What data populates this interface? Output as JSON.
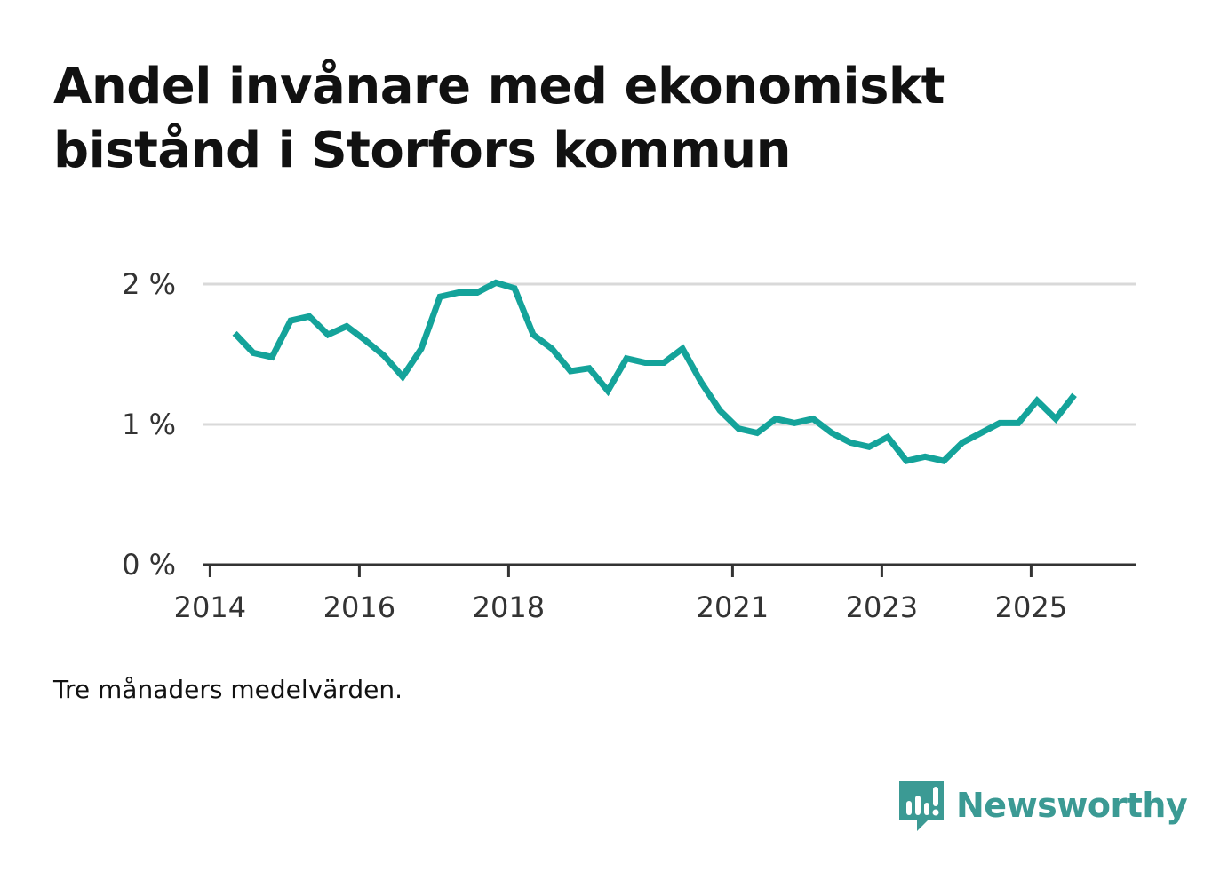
{
  "title": "Andel invånare med ekonomiskt bistånd i Storfors kommun",
  "footnote": "Tre månaders medelvärden.",
  "brand": {
    "name": "Newsworthy",
    "icon": "newsworthy-logo-icon",
    "color": "#3b9a94"
  },
  "colors": {
    "line": "#14a39a",
    "grid": "#d9d9d9",
    "axis": "#333333",
    "text": "#333333"
  },
  "chart_data": {
    "type": "line",
    "title": "Andel invånare med ekonomiskt bistånd i Storfors kommun",
    "xlabel": "",
    "ylabel": "",
    "xlim": [
      2013.9,
      2026.4
    ],
    "ylim": [
      0,
      2
    ],
    "x_ticks": [
      2014,
      2016,
      2018,
      2021,
      2023,
      2025
    ],
    "x_tick_labels": [
      "2014",
      "2016",
      "2018",
      "2021",
      "2023",
      "2025"
    ],
    "y_ticks": [
      0,
      1,
      2
    ],
    "y_tick_labels": [
      "0 %",
      "1 %",
      "2 %"
    ],
    "grid": true,
    "series": [
      {
        "name": "Andel invånare med ekonomiskt bistånd",
        "x": [
          2014.33,
          2014.58,
          2014.83,
          2015.08,
          2015.33,
          2015.58,
          2015.83,
          2016.08,
          2016.33,
          2016.58,
          2016.83,
          2017.08,
          2017.33,
          2017.58,
          2017.83,
          2018.08,
          2018.33,
          2018.58,
          2018.83,
          2019.08,
          2019.33,
          2019.58,
          2019.83,
          2020.08,
          2020.33,
          2020.58,
          2020.83,
          2021.08,
          2021.33,
          2021.58,
          2021.83,
          2022.08,
          2022.33,
          2022.58,
          2022.83,
          2023.08,
          2023.33,
          2023.58,
          2023.83,
          2024.08,
          2024.33,
          2024.58,
          2024.83,
          2025.08,
          2025.33,
          2025.58
        ],
        "values": [
          1.65,
          1.51,
          1.48,
          1.74,
          1.77,
          1.64,
          1.7,
          1.6,
          1.49,
          1.34,
          1.54,
          1.91,
          1.94,
          1.94,
          2.01,
          1.97,
          1.64,
          1.54,
          1.38,
          1.4,
          1.24,
          1.47,
          1.44,
          1.44,
          1.54,
          1.3,
          1.1,
          0.97,
          0.94,
          1.04,
          1.01,
          1.04,
          0.94,
          0.87,
          0.84,
          0.91,
          0.74,
          0.77,
          0.74,
          0.87,
          0.94,
          1.01,
          1.01,
          1.17,
          1.04,
          1.21
        ]
      }
    ]
  }
}
